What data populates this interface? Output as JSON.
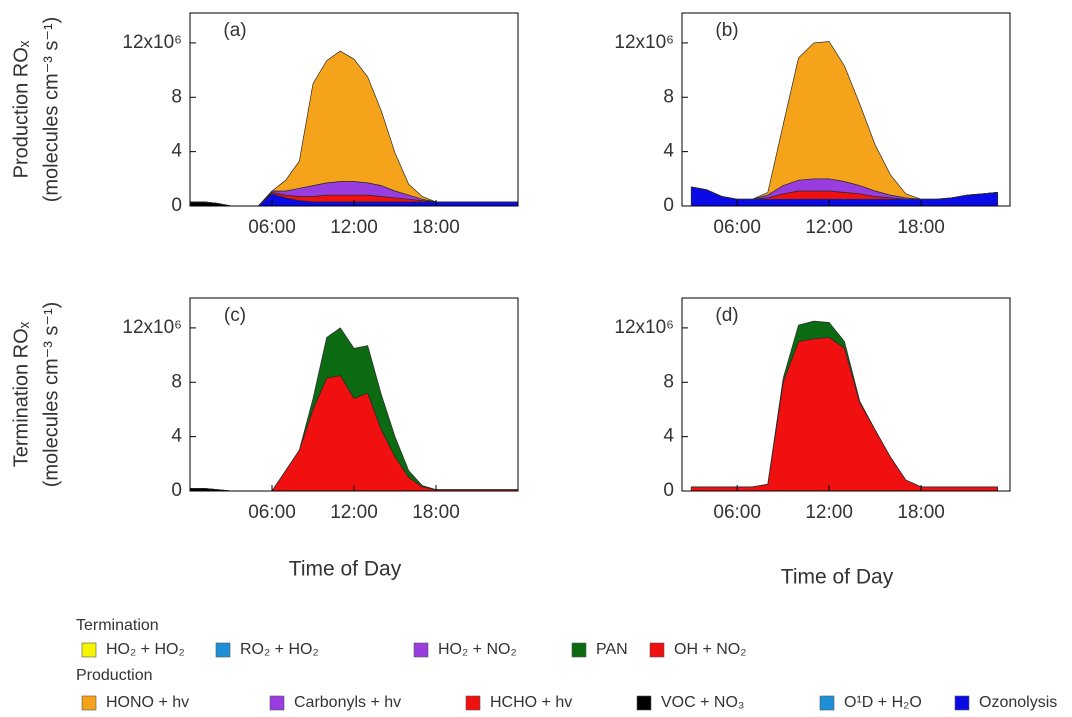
{
  "chart_data": [
    {
      "type": "area",
      "panel_label": "(a)",
      "ylabel": [
        "Production ROₓ",
        "(molecules cm⁻³ s⁻¹)"
      ],
      "x": [
        0,
        1,
        2,
        3,
        4,
        5,
        6,
        7,
        8,
        9,
        10,
        11,
        12,
        13,
        14,
        15,
        16,
        17,
        18,
        19,
        20,
        21,
        22,
        23,
        24
      ],
      "xlim": [
        0,
        24
      ],
      "xticks": [
        {
          "value": 6,
          "label": "06:00"
        },
        {
          "value": 12,
          "label": "12:00"
        },
        {
          "value": 18,
          "label": "18:00"
        }
      ],
      "ylim": [
        0,
        14.2
      ],
      "yticks": [
        0,
        4,
        8,
        {
          "value": 12,
          "label": "12x10⁶"
        }
      ],
      "series": [
        {
          "color": "#0a0ae6",
          "values": [
            0,
            0,
            0,
            0,
            0,
            0,
            0.9,
            0.6,
            0.4,
            0.3,
            0.3,
            0.3,
            0.3,
            0.3,
            0.3,
            0.3,
            0.3,
            0.3,
            0.3,
            0.3,
            0.3,
            0.3,
            0.3,
            0.3,
            0.3
          ]
        },
        {
          "color": "#000000",
          "values": [
            0.3,
            0.3,
            0.2,
            0,
            0,
            0,
            0,
            0,
            0,
            0,
            0,
            0,
            0,
            0,
            0,
            0,
            0,
            0,
            0,
            0,
            0,
            0,
            0,
            0,
            0
          ]
        },
        {
          "color": "#f01010",
          "values": [
            0,
            0,
            0,
            0,
            0,
            0,
            0.1,
            0.2,
            0.3,
            0.4,
            0.5,
            0.5,
            0.5,
            0.5,
            0.4,
            0.3,
            0.2,
            0.1,
            0,
            0,
            0,
            0,
            0,
            0,
            0
          ]
        },
        {
          "color": "#9a3de0",
          "values": [
            0,
            0,
            0,
            0,
            0,
            0,
            0.1,
            0.3,
            0.6,
            0.8,
            0.9,
            1.0,
            1.0,
            0.9,
            0.8,
            0.5,
            0.3,
            0.1,
            0,
            0,
            0,
            0,
            0,
            0,
            0
          ]
        },
        {
          "color": "#f6a31c",
          "values": [
            0,
            0,
            0,
            0,
            0,
            0,
            0,
            0.8,
            2.0,
            7.5,
            9.0,
            9.6,
            9.0,
            7.8,
            5.5,
            2.8,
            0.8,
            0.2,
            0,
            0,
            0,
            0,
            0,
            0,
            0
          ]
        }
      ]
    },
    {
      "type": "area",
      "panel_label": "(b)",
      "x": [
        3,
        4,
        5,
        6,
        7,
        8,
        9,
        10,
        11,
        12,
        13,
        14,
        15,
        16,
        17,
        18,
        19,
        20,
        21,
        22,
        23
      ],
      "xlim": [
        2.4,
        23.8
      ],
      "xticks": [
        {
          "value": 6,
          "label": "06:00"
        },
        {
          "value": 12,
          "label": "12:00"
        },
        {
          "value": 18,
          "label": "18:00"
        }
      ],
      "ylim": [
        0,
        14.2
      ],
      "yticks": [
        0,
        4,
        8,
        {
          "value": 12,
          "label": "12x10⁶"
        }
      ],
      "series": [
        {
          "color": "#0a0ae6",
          "values": [
            1.4,
            1.2,
            0.7,
            0.5,
            0.5,
            0.5,
            0.5,
            0.5,
            0.5,
            0.5,
            0.5,
            0.5,
            0.5,
            0.5,
            0.5,
            0.5,
            0.5,
            0.6,
            0.8,
            0.9,
            1.0
          ]
        },
        {
          "color": "#f01010",
          "values": [
            0,
            0,
            0,
            0,
            0,
            0.1,
            0.4,
            0.6,
            0.6,
            0.6,
            0.5,
            0.4,
            0.2,
            0.1,
            0,
            0,
            0,
            0,
            0,
            0,
            0
          ]
        },
        {
          "color": "#9a3de0",
          "values": [
            0,
            0,
            0,
            0,
            0,
            0.2,
            0.6,
            0.8,
            0.9,
            0.9,
            0.8,
            0.6,
            0.4,
            0.2,
            0.1,
            0,
            0,
            0,
            0,
            0,
            0
          ]
        },
        {
          "color": "#f6a31c",
          "values": [
            0,
            0,
            0,
            0,
            0,
            0.2,
            4.5,
            9.0,
            10.0,
            10.1,
            8.5,
            6.0,
            3.4,
            1.5,
            0.3,
            0,
            0,
            0,
            0,
            0,
            0
          ]
        }
      ]
    },
    {
      "type": "area",
      "panel_label": "(c)",
      "ylabel": [
        "Termination ROₓ",
        "(molecules cm⁻³ s⁻¹)"
      ],
      "xlabel": "Time of Day",
      "x": [
        0,
        1,
        2,
        3,
        4,
        5,
        6,
        7,
        8,
        9,
        10,
        11,
        12,
        13,
        14,
        15,
        16,
        17,
        18,
        19,
        20,
        21,
        22,
        23,
        24
      ],
      "xlim": [
        0,
        24
      ],
      "xticks": [
        {
          "value": 6,
          "label": "06:00"
        },
        {
          "value": 12,
          "label": "12:00"
        },
        {
          "value": 18,
          "label": "18:00"
        }
      ],
      "ylim": [
        0,
        14.2
      ],
      "yticks": [
        0,
        4,
        8,
        {
          "value": 12,
          "label": "12x10⁶"
        }
      ],
      "series": [
        {
          "color": "#000000",
          "values": [
            0.2,
            0.2,
            0.1,
            0,
            0,
            0,
            0,
            0,
            0,
            0,
            0,
            0,
            0,
            0,
            0,
            0,
            0,
            0,
            0,
            0,
            0,
            0,
            0,
            0,
            0
          ]
        },
        {
          "color": "#f01010",
          "values": [
            0,
            0,
            0,
            0,
            0,
            0,
            0,
            1.5,
            3.0,
            6.0,
            8.3,
            8.5,
            6.8,
            7.2,
            4.5,
            2.5,
            1.0,
            0.3,
            0.1,
            0.1,
            0.1,
            0.1,
            0.1,
            0.1,
            0.1
          ]
        },
        {
          "color": "#0c6b12",
          "values": [
            0,
            0,
            0,
            0,
            0,
            0,
            0,
            0,
            0,
            0.8,
            3.0,
            3.5,
            3.7,
            3.5,
            2.6,
            1.5,
            0.5,
            0.1,
            0,
            0,
            0,
            0,
            0,
            0,
            0
          ]
        }
      ]
    },
    {
      "type": "area",
      "panel_label": "(d)",
      "xlabel": "Time of Day",
      "x": [
        3,
        4,
        5,
        6,
        7,
        8,
        9,
        10,
        11,
        12,
        13,
        14,
        15,
        16,
        17,
        18,
        19,
        20,
        21,
        22,
        23
      ],
      "xlim": [
        2.4,
        23.8
      ],
      "xticks": [
        {
          "value": 6,
          "label": "06:00"
        },
        {
          "value": 12,
          "label": "12:00"
        },
        {
          "value": 18,
          "label": "18:00"
        }
      ],
      "ylim": [
        0,
        14.2
      ],
      "yticks": [
        0,
        4,
        8,
        {
          "value": 12,
          "label": "12x10⁶"
        }
      ],
      "series": [
        {
          "color": "#f01010",
          "values": [
            0.3,
            0.3,
            0.3,
            0.3,
            0.3,
            0.5,
            8.0,
            11.0,
            11.2,
            11.3,
            10.5,
            6.5,
            4.5,
            2.5,
            0.8,
            0.3,
            0.3,
            0.3,
            0.3,
            0.3,
            0.3
          ]
        },
        {
          "color": "#0c6b12",
          "values": [
            0,
            0,
            0,
            0,
            0,
            0,
            0.3,
            1.2,
            1.3,
            1.1,
            0.5,
            0.1,
            0,
            0,
            0,
            0,
            0,
            0,
            0,
            0,
            0
          ]
        }
      ]
    }
  ],
  "legend": [
    {
      "title": "Termination",
      "items": [
        {
          "name": "HO₂ + HO₂",
          "color": "#f5f500"
        },
        {
          "name": "RO₂ + HO₂",
          "color": "#1e8fd6"
        },
        {
          "name": "HO₂ + NO₂",
          "color": "#9a3de0"
        },
        {
          "name": "PAN",
          "color": "#0c6b12"
        },
        {
          "name": "OH + NO₂",
          "color": "#f01010"
        }
      ]
    },
    {
      "title": "Production",
      "items": [
        {
          "name": "HONO + hv",
          "color": "#f6a31c"
        },
        {
          "name": "Carbonyls + hv",
          "color": "#9a3de0"
        },
        {
          "name": "HCHO + hv",
          "color": "#f01010"
        },
        {
          "name": "VOC + NO₃",
          "color": "#000000"
        },
        {
          "name": "O¹D + H₂O",
          "color": "#1e8fd6"
        },
        {
          "name": "Ozonolysis",
          "color": "#0a0ae6"
        }
      ]
    }
  ]
}
